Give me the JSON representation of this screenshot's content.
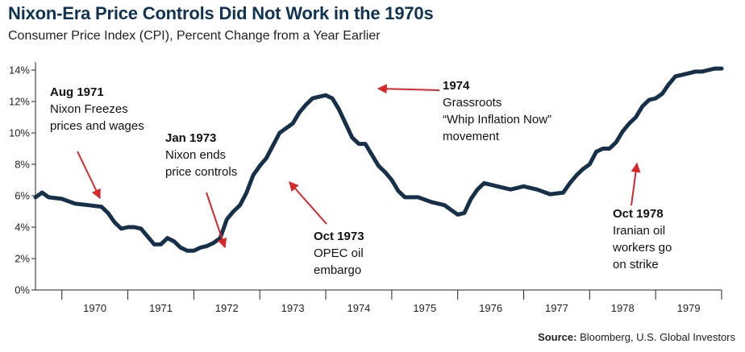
{
  "title": "Nixon-Era Price Controls Did Not Work in the 1970s",
  "subtitle": "Consumer Price Index (CPI), Percent Change from a Year Earlier",
  "source": {
    "label": "Source:",
    "text": " Bloomberg, U.S. Global Investors"
  },
  "colors": {
    "line": "#17304a",
    "arrow": "#d9262a",
    "title": "#0f3350",
    "axis": "#222222"
  },
  "chart_data": {
    "type": "line",
    "title": "Nixon-Era Price Controls Did Not Work in the 1970s",
    "subtitle": "Consumer Price Index (CPI), Percent Change from a Year Earlier",
    "xlabel": "",
    "ylabel": "",
    "xlim": [
      1969.6,
      1980.0
    ],
    "ylim": [
      0,
      14
    ],
    "y_ticks": [
      "0%",
      "2%",
      "4%",
      "6%",
      "8%",
      "10%",
      "12%",
      "14%"
    ],
    "x_tick_labels": [
      "1970",
      "1971",
      "1972",
      "1973",
      "1974",
      "1975",
      "1976",
      "1977",
      "1978",
      "1979"
    ],
    "grid": false,
    "series": [
      {
        "x": [
          1969.6,
          1969.7,
          1969.8,
          1970.0,
          1970.2,
          1970.4,
          1970.5,
          1970.6,
          1970.7,
          1970.8,
          1970.9,
          1971.0,
          1971.1,
          1971.2,
          1971.3,
          1971.4,
          1971.5,
          1971.6,
          1971.7,
          1971.8,
          1971.9,
          1972.0,
          1972.1,
          1972.2,
          1972.3,
          1972.4,
          1972.5,
          1972.6,
          1972.7,
          1972.8,
          1972.9,
          1973.0,
          1973.1,
          1973.2,
          1973.3,
          1973.4,
          1973.5,
          1973.6,
          1973.7,
          1973.8,
          1973.9,
          1974.0,
          1974.1,
          1974.2,
          1974.3,
          1974.4,
          1974.5,
          1974.6,
          1974.7,
          1974.8,
          1974.9,
          1975.0,
          1975.1,
          1975.2,
          1975.4,
          1975.6,
          1975.8,
          1975.9,
          1976.0,
          1976.1,
          1976.2,
          1976.3,
          1976.4,
          1976.5,
          1976.6,
          1976.7,
          1976.8,
          1976.9,
          1977.0,
          1977.1,
          1977.2,
          1977.4,
          1977.6,
          1977.7,
          1977.8,
          1977.9,
          1978.0,
          1978.1,
          1978.2,
          1978.3,
          1978.4,
          1978.5,
          1978.6,
          1978.7,
          1978.8,
          1978.9,
          1979.0,
          1979.1,
          1979.2,
          1979.3,
          1979.4,
          1979.5,
          1979.6,
          1979.7,
          1979.8,
          1979.9,
          1980.0
        ],
        "y": [
          5.9,
          6.2,
          5.9,
          5.8,
          5.5,
          5.4,
          5.35,
          5.3,
          4.9,
          4.3,
          3.9,
          4.0,
          4.0,
          3.9,
          3.4,
          2.9,
          2.9,
          3.3,
          3.1,
          2.7,
          2.5,
          2.5,
          2.7,
          2.8,
          3.0,
          3.3,
          4.5,
          5.0,
          5.4,
          6.2,
          7.3,
          7.9,
          8.4,
          9.2,
          10.0,
          10.3,
          10.6,
          11.3,
          11.8,
          12.2,
          12.3,
          12.4,
          12.2,
          11.5,
          10.6,
          9.7,
          9.3,
          9.3,
          8.6,
          7.9,
          7.5,
          7.0,
          6.3,
          5.9,
          5.9,
          5.6,
          5.4,
          5.1,
          4.8,
          4.9,
          5.8,
          6.4,
          6.8,
          6.7,
          6.6,
          6.5,
          6.4,
          6.5,
          6.6,
          6.5,
          6.4,
          6.1,
          6.2,
          6.8,
          7.3,
          7.7,
          8.0,
          8.8,
          9.0,
          9.0,
          9.4,
          10.1,
          10.6,
          11.0,
          11.7,
          12.1,
          12.2,
          12.5,
          13.1,
          13.6,
          13.7,
          13.8,
          13.9,
          13.9,
          14.0,
          14.1,
          14.1
        ],
        "color": "#17304a"
      }
    ],
    "annotations": [
      {
        "head": "Aug 1971",
        "lines": [
          "Nixon Freezes",
          "prices and wages"
        ]
      },
      {
        "head": "Jan 1973",
        "lines": [
          "Nixon ends",
          "price controls"
        ]
      },
      {
        "head": "Oct 1973",
        "lines": [
          "OPEC oil",
          "embargo"
        ]
      },
      {
        "head": "1974",
        "lines": [
          "Grassroots",
          "“Whip Inflation Now”",
          "movement"
        ]
      },
      {
        "head": "Oct 1978",
        "lines": [
          "Iranian oil",
          "workers go",
          "on strike"
        ]
      }
    ]
  }
}
